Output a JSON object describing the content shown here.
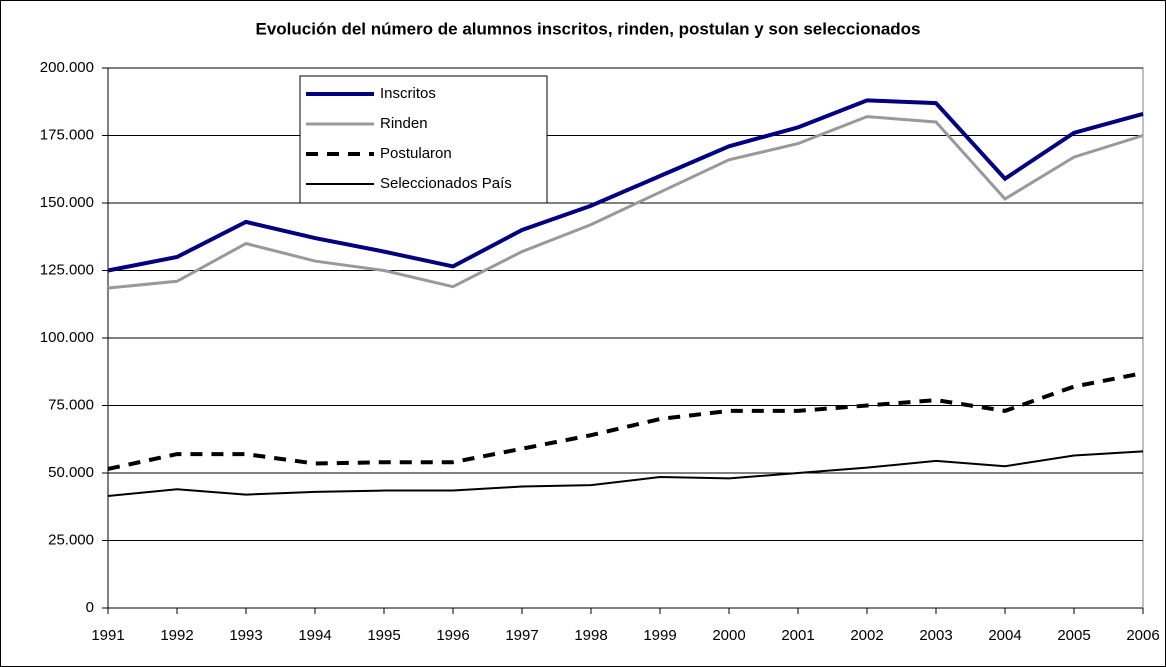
{
  "chart_data": {
    "type": "line",
    "title": "Evolución del número de alumnos inscritos, rinden, postulan y son seleccionados",
    "x": [
      1991,
      1992,
      1993,
      1994,
      1995,
      1996,
      1997,
      1998,
      1999,
      2000,
      2001,
      2002,
      2003,
      2004,
      2005,
      2006
    ],
    "xlim": [
      1991,
      2006
    ],
    "xticks": [
      1991,
      1992,
      1993,
      1994,
      1995,
      1996,
      1997,
      1998,
      1999,
      2000,
      2001,
      2002,
      2003,
      2004,
      2005,
      2006
    ],
    "ylim": [
      0,
      200000
    ],
    "yticks": [
      0,
      {
        "value": 25000,
        "label": "25.000"
      },
      {
        "value": 50000,
        "label": "50.000"
      },
      {
        "value": 75000,
        "label": "75.000"
      },
      {
        "value": 100000,
        "label": "100.000"
      },
      {
        "value": 125000,
        "label": "125.000"
      },
      {
        "value": 150000,
        "label": "150.000"
      },
      {
        "value": 175000,
        "label": "175.000"
      },
      {
        "value": 200000,
        "label": "200.000"
      }
    ],
    "grid": true,
    "legend": "upper-left",
    "series": [
      {
        "name": "Inscritos",
        "color": "#000080",
        "values": [
          125000,
          130000,
          143000,
          137000,
          132000,
          126500,
          140000,
          149000,
          160000,
          171000,
          178000,
          188000,
          187000,
          159000,
          176000,
          183000
        ]
      },
      {
        "name": "Rinden",
        "color": "#999999",
        "values": [
          118500,
          121000,
          135000,
          128500,
          125000,
          119000,
          132000,
          142000,
          154000,
          166000,
          172000,
          182000,
          180000,
          151500,
          167000,
          175000
        ]
      },
      {
        "name": "Postularon",
        "color": "#000000",
        "dashed": true,
        "values": [
          51500,
          57000,
          57000,
          53500,
          54000,
          54000,
          59000,
          64000,
          70000,
          73000,
          73000,
          75000,
          77000,
          73000,
          82000,
          87000
        ]
      },
      {
        "name": "Seleccionados País",
        "color": "#000000",
        "values": [
          41500,
          44000,
          42000,
          43000,
          43500,
          43500,
          45000,
          45500,
          48500,
          48000,
          50000,
          52000,
          54500,
          52500,
          56500,
          58000
        ]
      }
    ]
  }
}
